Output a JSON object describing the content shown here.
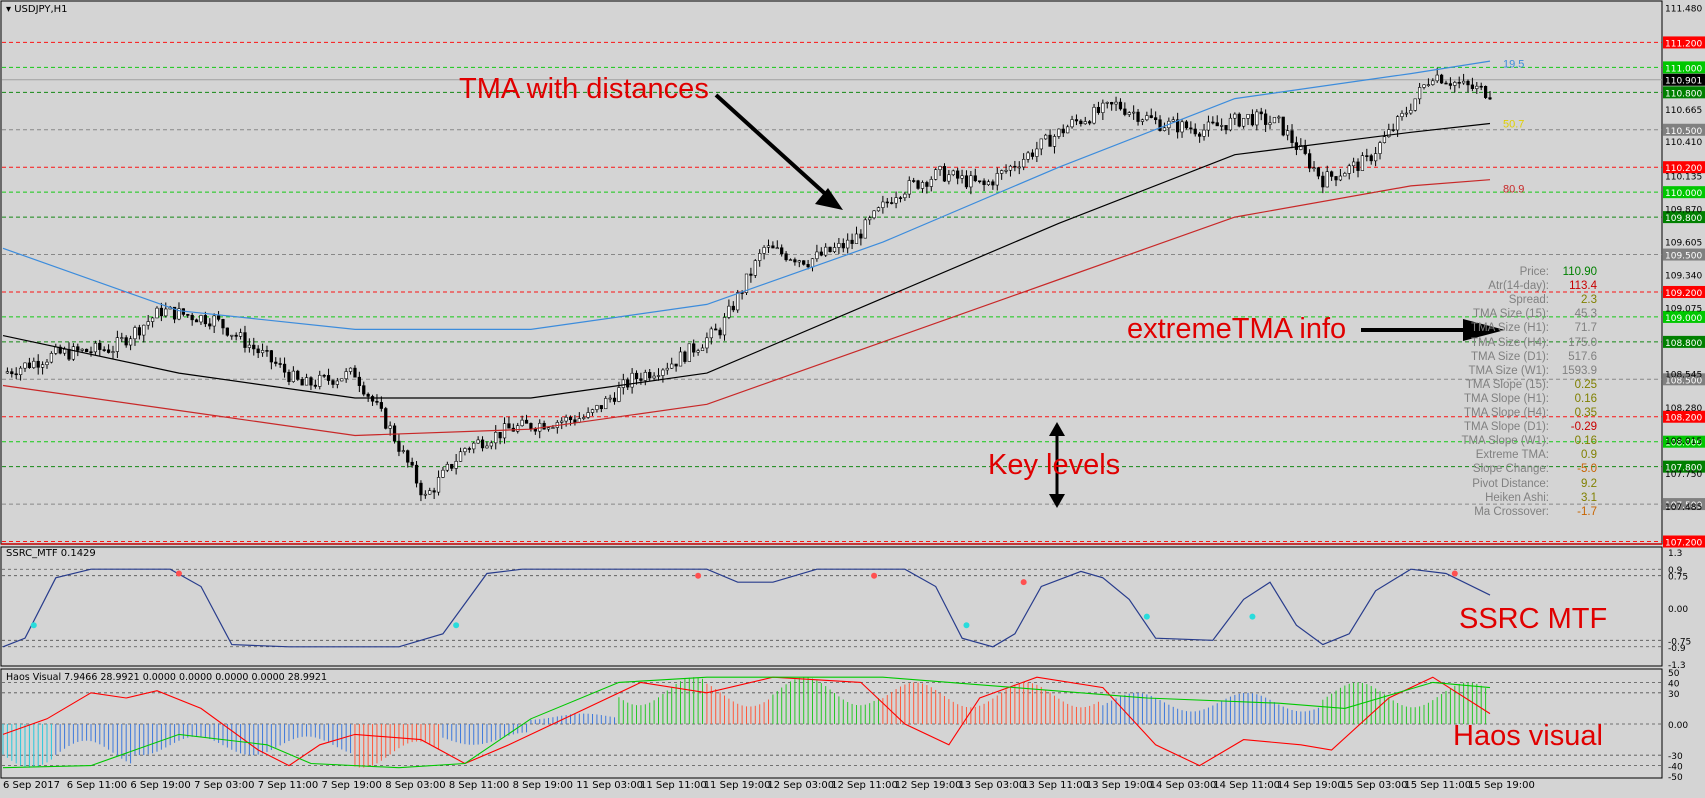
{
  "window": {
    "symbol_title": "USDJPY,H1"
  },
  "main_axis": {
    "price_range": [
      107.18,
      111.5
    ],
    "tick_labels": [
      "111.480",
      "111.200",
      "111.000",
      "110.901",
      "110.800",
      "110.665",
      "110.500",
      "110.410",
      "110.200",
      "110.135",
      "110.000",
      "109.870",
      "109.800",
      "109.605",
      "109.500",
      "109.340",
      "109.200",
      "109.075",
      "109.000",
      "108.800",
      "108.545",
      "108.500",
      "108.280",
      "108.200",
      "108.015",
      "108.000",
      "107.800",
      "107.750",
      "107.500",
      "107.485",
      "107.200"
    ],
    "key_levels": [
      {
        "price": 111.2,
        "label": "111.200",
        "color": "#ff0000"
      },
      {
        "price": 111.0,
        "label": "111.000",
        "color": "#00c800"
      },
      {
        "price": 110.8,
        "label": "110.800",
        "color": "#008000"
      },
      {
        "price": 110.5,
        "label": "110.500",
        "color": "#808080"
      },
      {
        "price": 110.2,
        "label": "110.200",
        "color": "#ff0000"
      },
      {
        "price": 110.0,
        "label": "110.000",
        "color": "#00c800"
      },
      {
        "price": 109.8,
        "label": "109.800",
        "color": "#008000"
      },
      {
        "price": 109.5,
        "label": "109.500",
        "color": "#808080"
      },
      {
        "price": 109.2,
        "label": "109.200",
        "color": "#ff0000"
      },
      {
        "price": 109.0,
        "label": "109.000",
        "color": "#00c800"
      },
      {
        "price": 108.8,
        "label": "108.800",
        "color": "#008000"
      },
      {
        "price": 108.5,
        "label": "108.500",
        "color": "#808080"
      },
      {
        "price": 108.2,
        "label": "108.200",
        "color": "#ff0000"
      },
      {
        "price": 108.0,
        "label": "108.000",
        "color": "#00c800"
      },
      {
        "price": 107.8,
        "label": "107.800",
        "color": "#008000"
      },
      {
        "price": 107.5,
        "label": "107.500",
        "color": "#808080"
      },
      {
        "price": 107.2,
        "label": "107.200",
        "color": "#ff0000"
      }
    ],
    "current_price_label": "110.901",
    "current_price": 110.901
  },
  "chart_data": [
    {
      "type": "candlestick",
      "title": "USDJPY,H1",
      "x_categories": [
        "6 Sep 2017",
        "6 Sep 11:00",
        "6 Sep 19:00",
        "7 Sep 03:00",
        "7 Sep 11:00",
        "7 Sep 19:00",
        "8 Sep 03:00",
        "8 Sep 11:00",
        "8 Sep 19:00",
        "11 Sep 03:00",
        "11 Sep 11:00",
        "11 Sep 19:00",
        "12 Sep 03:00",
        "12 Sep 11:00",
        "12 Sep 19:00",
        "13 Sep 03:00",
        "13 Sep 11:00",
        "13 Sep 19:00",
        "14 Sep 03:00",
        "14 Sep 11:00",
        "14 Sep 19:00",
        "15 Sep 03:00",
        "15 Sep 11:00",
        "15 Sep 19:00"
      ],
      "close_anchors": [
        [
          0,
          108.55
        ],
        [
          12,
          108.7
        ],
        [
          25,
          108.75
        ],
        [
          36,
          109.05
        ],
        [
          48,
          108.98
        ],
        [
          62,
          108.62
        ],
        [
          68,
          108.45
        ],
        [
          80,
          108.55
        ],
        [
          88,
          108.1
        ],
        [
          96,
          107.55
        ],
        [
          105,
          107.95
        ],
        [
          115,
          108.1
        ],
        [
          123,
          108.15
        ],
        [
          133,
          108.2
        ],
        [
          143,
          108.5
        ],
        [
          153,
          108.65
        ],
        [
          163,
          108.9
        ],
        [
          173,
          109.55
        ],
        [
          183,
          109.45
        ],
        [
          193,
          109.6
        ],
        [
          203,
          110.0
        ],
        [
          213,
          110.15
        ],
        [
          223,
          110.05
        ],
        [
          233,
          110.3
        ],
        [
          243,
          110.55
        ],
        [
          253,
          110.7
        ],
        [
          263,
          110.55
        ],
        [
          273,
          110.5
        ],
        [
          283,
          110.6
        ],
        [
          290,
          110.55
        ],
        [
          300,
          110.1
        ],
        [
          310,
          110.25
        ],
        [
          318,
          110.6
        ],
        [
          325,
          110.95
        ],
        [
          332,
          110.85
        ],
        [
          338,
          110.8
        ]
      ],
      "ylim": [
        107.18,
        111.5
      ]
    },
    {
      "type": "line",
      "title": "TMA with distances",
      "series": [
        {
          "name": "upper",
          "color": "#3c8cdc",
          "points": [
            [
              0,
              109.55
            ],
            [
              40,
              109.05
            ],
            [
              80,
              108.9
            ],
            [
              120,
              108.9
            ],
            [
              160,
              109.1
            ],
            [
              200,
              109.6
            ],
            [
              240,
              110.2
            ],
            [
              280,
              110.75
            ],
            [
              320,
              110.95
            ],
            [
              338,
              111.05
            ]
          ]
        },
        {
          "name": "middle",
          "color": "#000000",
          "points": [
            [
              0,
              108.85
            ],
            [
              40,
              108.55
            ],
            [
              80,
              108.35
            ],
            [
              120,
              108.35
            ],
            [
              160,
              108.55
            ],
            [
              200,
              109.15
            ],
            [
              240,
              109.75
            ],
            [
              280,
              110.3
            ],
            [
              320,
              110.48
            ],
            [
              338,
              110.55
            ]
          ]
        },
        {
          "name": "lower",
          "color": "#c82828",
          "points": [
            [
              0,
              108.45
            ],
            [
              40,
              108.25
            ],
            [
              80,
              108.05
            ],
            [
              120,
              108.1
            ],
            [
              160,
              108.3
            ],
            [
              200,
              108.8
            ],
            [
              240,
              109.3
            ],
            [
              280,
              109.8
            ],
            [
              320,
              110.05
            ],
            [
              338,
              110.1
            ]
          ]
        }
      ],
      "series_labels": [
        {
          "text": "19.5",
          "color": "#3c8cdc",
          "price": 111.03
        },
        {
          "text": "50.7",
          "color": "#e0d000",
          "price": 110.55
        },
        {
          "text": "80.9",
          "color": "#c82828",
          "price": 110.03
        }
      ]
    },
    {
      "type": "line",
      "title": "SSRC_MTF 0.1429",
      "ylim": [
        -1.3,
        1.3
      ],
      "tick_labels": [
        "1.3",
        "0.9",
        "0.75",
        "0.00",
        "-0.75",
        "-0.9",
        "-1.3"
      ],
      "series": [
        {
          "name": "SSRC_MTF",
          "color": "#283c8c",
          "points": [
            [
              0,
              -0.9
            ],
            [
              5,
              -0.7
            ],
            [
              12,
              0.7
            ],
            [
              20,
              0.9
            ],
            [
              38,
              0.9
            ],
            [
              45,
              0.5
            ],
            [
              52,
              -0.85
            ],
            [
              65,
              -0.9
            ],
            [
              90,
              -0.9
            ],
            [
              100,
              -0.6
            ],
            [
              110,
              0.8
            ],
            [
              118,
              0.9
            ],
            [
              160,
              0.9
            ],
            [
              167,
              0.6
            ],
            [
              175,
              0.6
            ],
            [
              185,
              0.9
            ],
            [
              205,
              0.9
            ],
            [
              212,
              0.5
            ],
            [
              218,
              -0.7
            ],
            [
              225,
              -0.9
            ],
            [
              230,
              -0.6
            ],
            [
              236,
              0.5
            ],
            [
              245,
              0.85
            ],
            [
              250,
              0.7
            ],
            [
              256,
              0.2
            ],
            [
              262,
              -0.7
            ],
            [
              275,
              -0.75
            ],
            [
              282,
              0.2
            ],
            [
              288,
              0.6
            ],
            [
              294,
              -0.4
            ],
            [
              300,
              -0.85
            ],
            [
              306,
              -0.6
            ],
            [
              312,
              0.4
            ],
            [
              320,
              0.9
            ],
            [
              328,
              0.8
            ],
            [
              338,
              0.3
            ]
          ]
        }
      ],
      "signals": [
        {
          "x": 7,
          "value": -0.4,
          "kind": "buy"
        },
        {
          "x": 40,
          "value": 0.8,
          "kind": "sell"
        },
        {
          "x": 103,
          "value": -0.4,
          "kind": "buy"
        },
        {
          "x": 158,
          "value": 0.75,
          "kind": "sell"
        },
        {
          "x": 198,
          "value": 0.75,
          "kind": "sell"
        },
        {
          "x": 219,
          "value": -0.4,
          "kind": "buy"
        },
        {
          "x": 232,
          "value": 0.6,
          "kind": "sell"
        },
        {
          "x": 260,
          "value": -0.2,
          "kind": "buy"
        },
        {
          "x": 284,
          "value": -0.2,
          "kind": "buy"
        },
        {
          "x": 330,
          "value": 0.8,
          "kind": "sell"
        }
      ]
    },
    {
      "type": "bar",
      "title": "Haos Visual 7.9466 28.9921 0.0000 0.0000 0.0000 0.0000 28.9921",
      "ylim": [
        -50,
        50
      ],
      "tick_labels": [
        "50",
        "40",
        "30",
        "0.00",
        "-30",
        "-40",
        "-50"
      ],
      "bar_series_colors": {
        "cyan": "#28c8dc",
        "blue": "#3c78dc",
        "red": "#ff5a3c",
        "green": "#28c828"
      },
      "bar_segments": [
        {
          "from": 0,
          "to": 12,
          "value": -42,
          "color": "#28c8dc"
        },
        {
          "from": 12,
          "to": 30,
          "value": -40,
          "color": "#3c78dc"
        },
        {
          "from": 30,
          "to": 80,
          "value": -30,
          "color": "#3c78dc"
        },
        {
          "from": 80,
          "to": 100,
          "value": -42,
          "color": "#ff5a3c"
        },
        {
          "from": 100,
          "to": 120,
          "value": -20,
          "color": "#3c78dc"
        },
        {
          "from": 120,
          "to": 140,
          "value": 10,
          "color": "#3c78dc"
        },
        {
          "from": 140,
          "to": 160,
          "value": 45,
          "color": "#28c828"
        },
        {
          "from": 160,
          "to": 175,
          "value": 42,
          "color": "#ff5a3c"
        },
        {
          "from": 175,
          "to": 200,
          "value": 45,
          "color": "#28c828"
        },
        {
          "from": 200,
          "to": 250,
          "value": 40,
          "color": "#ff5a3c"
        },
        {
          "from": 250,
          "to": 300,
          "value": 30,
          "color": "#3c78dc"
        },
        {
          "from": 300,
          "to": 338,
          "value": 40,
          "color": "#28c828"
        }
      ],
      "lines": [
        {
          "name": "red",
          "color": "#ff0000",
          "points": [
            [
              0,
              -10
            ],
            [
              10,
              5
            ],
            [
              20,
              30
            ],
            [
              28,
              25
            ],
            [
              35,
              32
            ],
            [
              45,
              15
            ],
            [
              58,
              -25
            ],
            [
              65,
              -40
            ],
            [
              72,
              -20
            ],
            [
              80,
              -10
            ],
            [
              95,
              -15
            ],
            [
              105,
              -38
            ],
            [
              115,
              -20
            ],
            [
              130,
              10
            ],
            [
              145,
              40
            ],
            [
              160,
              30
            ],
            [
              175,
              45
            ],
            [
              195,
              40
            ],
            [
              205,
              0
            ],
            [
              215,
              -20
            ],
            [
              222,
              25
            ],
            [
              235,
              45
            ],
            [
              250,
              35
            ],
            [
              262,
              -20
            ],
            [
              272,
              -40
            ],
            [
              282,
              -15
            ],
            [
              295,
              -20
            ],
            [
              302,
              -25
            ],
            [
              315,
              25
            ],
            [
              325,
              45
            ],
            [
              338,
              10
            ]
          ]
        },
        {
          "name": "green",
          "color": "#00c800",
          "points": [
            [
              0,
              -42
            ],
            [
              20,
              -40
            ],
            [
              40,
              -10
            ],
            [
              60,
              -20
            ],
            [
              70,
              -38
            ],
            [
              90,
              -42
            ],
            [
              105,
              -38
            ],
            [
              120,
              5
            ],
            [
              140,
              40
            ],
            [
              160,
              45
            ],
            [
              200,
              45
            ],
            [
              230,
              35
            ],
            [
              260,
              25
            ],
            [
              290,
              20
            ],
            [
              305,
              15
            ],
            [
              325,
              40
            ],
            [
              338,
              35
            ]
          ]
        }
      ]
    }
  ],
  "info_panel": [
    {
      "label": "Price:",
      "value": "110.90",
      "color": "#008000"
    },
    {
      "label": "Atr(14-day):",
      "value": "113.4",
      "color": "#c80000"
    },
    {
      "label": "Spread:",
      "value": "2.3",
      "color": "#808000"
    },
    {
      "label": "TMA Size (15):",
      "value": "45.3",
      "color": "#808080"
    },
    {
      "label": "TMA Size (H1):",
      "value": "71.7",
      "color": "#808080"
    },
    {
      "label": "TMA Size (H4):",
      "value": "175.0",
      "color": "#808080"
    },
    {
      "label": "TMA Size (D1):",
      "value": "517.6",
      "color": "#808080"
    },
    {
      "label": "TMA Size (W1):",
      "value": "1593.9",
      "color": "#808080"
    },
    {
      "label": "TMA Slope (15):",
      "value": "0.25",
      "color": "#808000"
    },
    {
      "label": "TMA Slope (H1):",
      "value": "0.16",
      "color": "#808000"
    },
    {
      "label": "TMA Slope (H4):",
      "value": "0.35",
      "color": "#808000"
    },
    {
      "label": "TMA Slope (D1):",
      "value": "-0.29",
      "color": "#c80000"
    },
    {
      "label": "TMA Slope (W1):",
      "value": "0.16",
      "color": "#808000"
    },
    {
      "label": "Extreme TMA:",
      "value": "0.9",
      "color": "#808000"
    },
    {
      "label": "Slope Change:",
      "value": "-5.0",
      "color": "#c86400"
    },
    {
      "label": "Pivot Distance:",
      "value": "9.2",
      "color": "#808000"
    },
    {
      "label": "Heiken Ashi:",
      "value": "3.1",
      "color": "#808000"
    },
    {
      "label": "Ma Crossover:",
      "value": "-1.7",
      "color": "#c86400"
    }
  ],
  "annotations": {
    "tma": "TMA with distances",
    "key_levels": "Key levels",
    "extreme_tma": "extremeTMA info",
    "ssrc": "SSRC MTF",
    "haos": "Haos visual"
  },
  "colors": {
    "background": "#d4d4d4",
    "bull_candle": "#ffffff",
    "bear_candle": "#000000",
    "annotation": "#e00000"
  }
}
